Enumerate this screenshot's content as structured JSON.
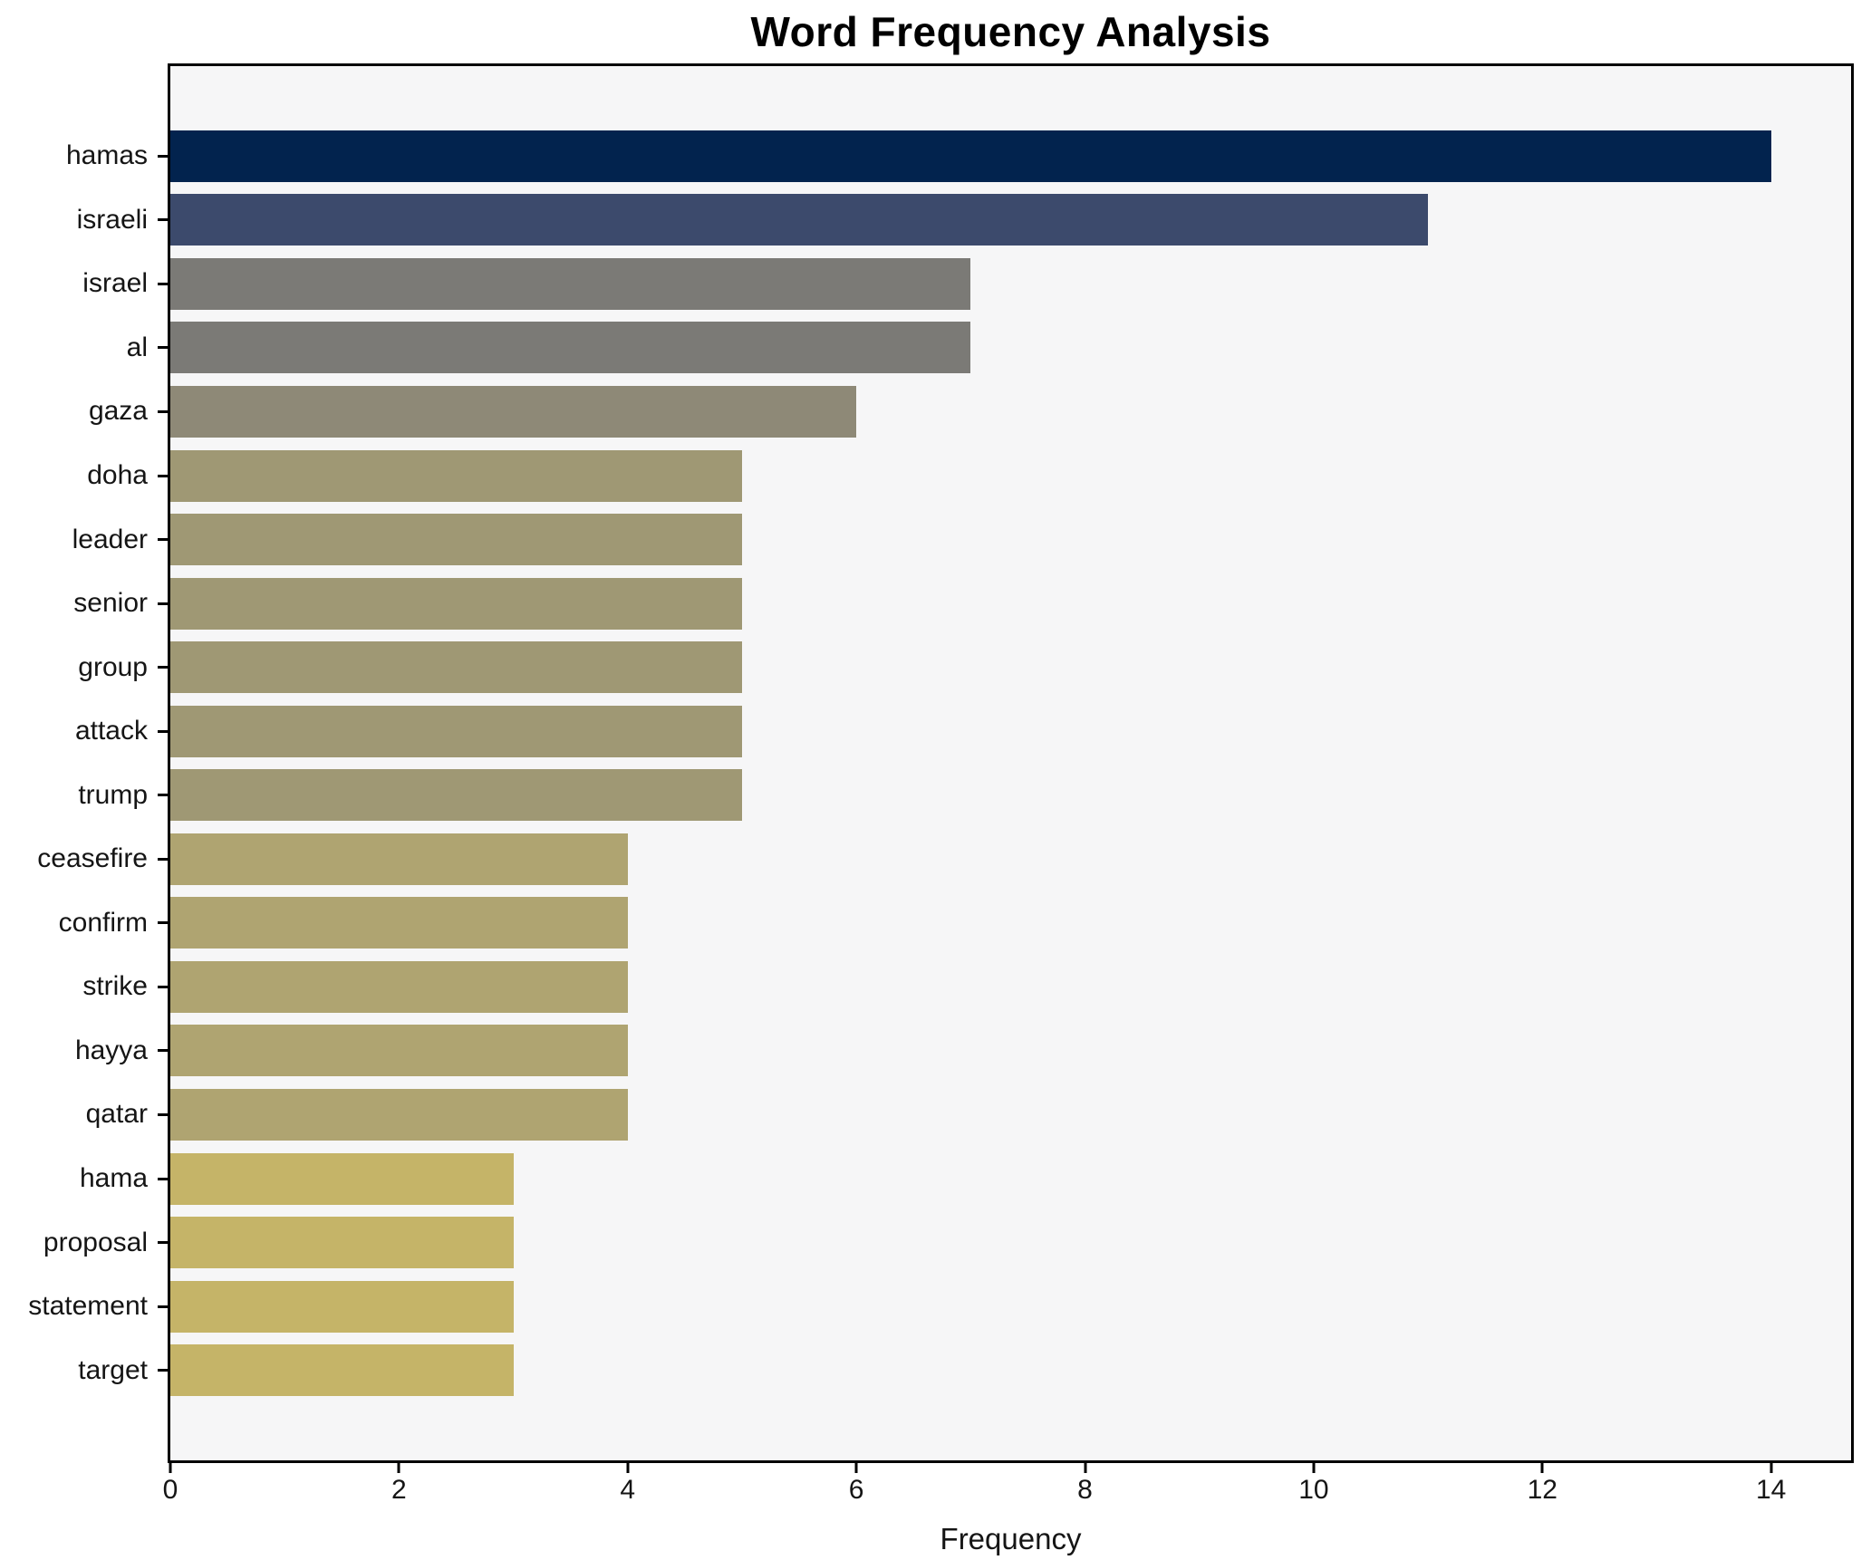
{
  "chart_data": {
    "type": "bar",
    "orientation": "horizontal",
    "title": "Word Frequency Analysis",
    "xlabel": "Frequency",
    "ylabel": "",
    "categories": [
      "hamas",
      "israeli",
      "israel",
      "al",
      "gaza",
      "doha",
      "leader",
      "senior",
      "group",
      "attack",
      "trump",
      "ceasefire",
      "confirm",
      "strike",
      "hayya",
      "qatar",
      "hama",
      "proposal",
      "statement",
      "target"
    ],
    "values": [
      14,
      11,
      7,
      7,
      6,
      5,
      5,
      5,
      5,
      5,
      5,
      4,
      4,
      4,
      4,
      4,
      3,
      3,
      3,
      3
    ],
    "colors": [
      "#02234e",
      "#3c4a6c",
      "#7b7a76",
      "#7b7a76",
      "#8e8977",
      "#9f9874",
      "#9f9874",
      "#9f9874",
      "#9f9874",
      "#9f9874",
      "#9f9874",
      "#afa471",
      "#afa471",
      "#afa471",
      "#afa471",
      "#afa471",
      "#c5b468",
      "#c5b468",
      "#c5b468",
      "#c5b468"
    ],
    "xlim": [
      0,
      14.7
    ],
    "xticks": [
      0,
      2,
      4,
      6,
      8,
      10,
      12,
      14
    ],
    "grid": false,
    "legend_position": "none",
    "plot_background": "#f6f6f7",
    "figure_background": "#ffffff",
    "bar_color_scheme": "cividis-by-value"
  }
}
